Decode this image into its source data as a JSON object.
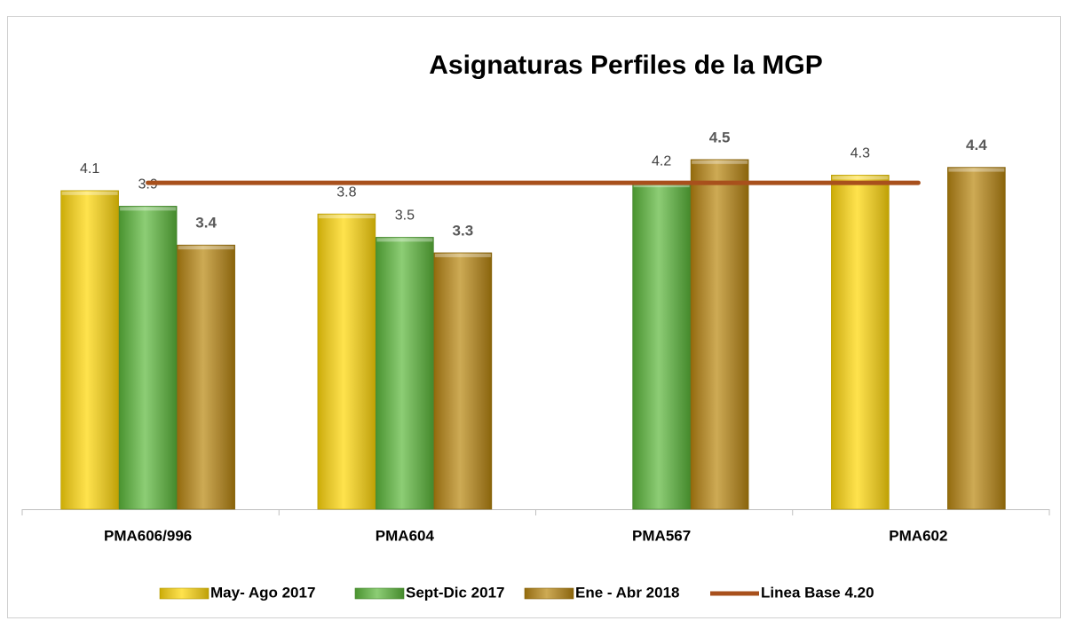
{
  "chart_data": {
    "type": "bar",
    "title": "Asignaturas Perfiles de la MGP",
    "categories": [
      "PMA606/996",
      "PMA604",
      "PMA567",
      "PMA602"
    ],
    "ylim": [
      0,
      5
    ],
    "series": [
      {
        "name": "May- Ago 2017",
        "color": "#ffd700",
        "values": [
          4.1,
          3.8,
          null,
          4.3
        ]
      },
      {
        "name": "Sept-Dic 2017",
        "color": "#5cb83a",
        "values": [
          3.9,
          3.5,
          4.2,
          null
        ]
      },
      {
        "name": "Ene - Abr 2018",
        "color": "#b8860b",
        "values": [
          3.4,
          3.3,
          4.5,
          4.4
        ]
      },
      {
        "name": "Linea Base 4.20",
        "type": "line",
        "color": "#a8501c",
        "values": [
          4.2,
          4.2,
          4.2,
          4.2
        ]
      }
    ]
  }
}
